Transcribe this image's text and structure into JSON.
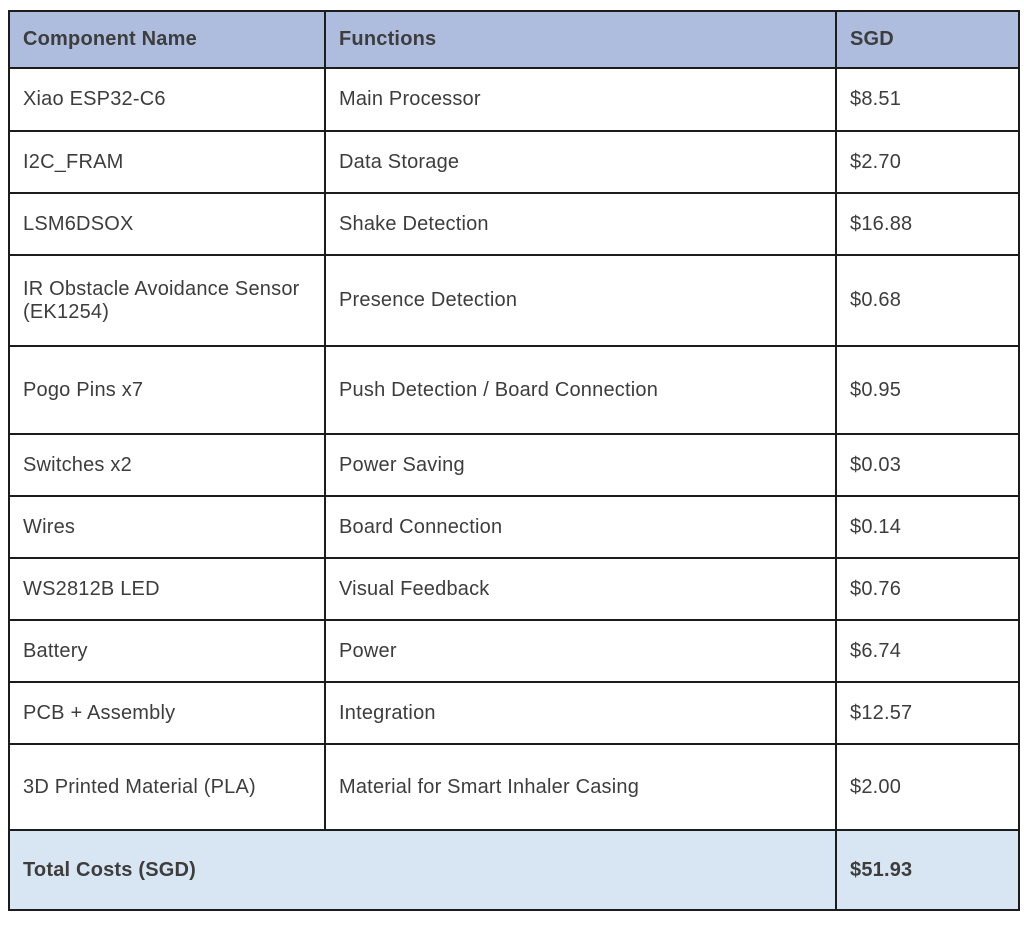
{
  "table": {
    "columns": [
      "Component Name",
      "Functions",
      "SGD"
    ],
    "rows": [
      {
        "component": "Xiao ESP32-C6",
        "function": "Main Processor",
        "cost": "$8.51"
      },
      {
        "component": "I2C_FRAM",
        "function": "Data Storage",
        "cost": "$2.70"
      },
      {
        "component": "LSM6DSOX",
        "function": "Shake Detection",
        "cost": "$16.88"
      },
      {
        "component": "IR Obstacle Avoidance Sensor (EK1254)",
        "function": "Presence Detection",
        "cost": "$0.68"
      },
      {
        "component": "Pogo Pins x7",
        "function": "Push Detection / Board Connection",
        "cost": "$0.95"
      },
      {
        "component": "Switches x2",
        "function": "Power Saving",
        "cost": "$0.03"
      },
      {
        "component": "Wires",
        "function": "Board Connection",
        "cost": "$0.14"
      },
      {
        "component": "WS2812B LED",
        "function": "Visual Feedback",
        "cost": "$0.76"
      },
      {
        "component": "Battery",
        "function": "Power",
        "cost": "$6.74"
      },
      {
        "component": "PCB + Assembly",
        "function": "Integration",
        "cost": "$12.57"
      },
      {
        "component": "3D Printed Material (PLA)",
        "function": "Material for Smart Inhaler Casing",
        "cost": "$2.00"
      }
    ],
    "total": {
      "label": "Total Costs (SGD)",
      "value": "$51.93"
    }
  },
  "colors": {
    "header_bg": "#aebdde",
    "total_bg": "#d8e5f2",
    "border": "#1c1c1c",
    "body_text": "#3d3d3d",
    "header_text": "#141414"
  }
}
